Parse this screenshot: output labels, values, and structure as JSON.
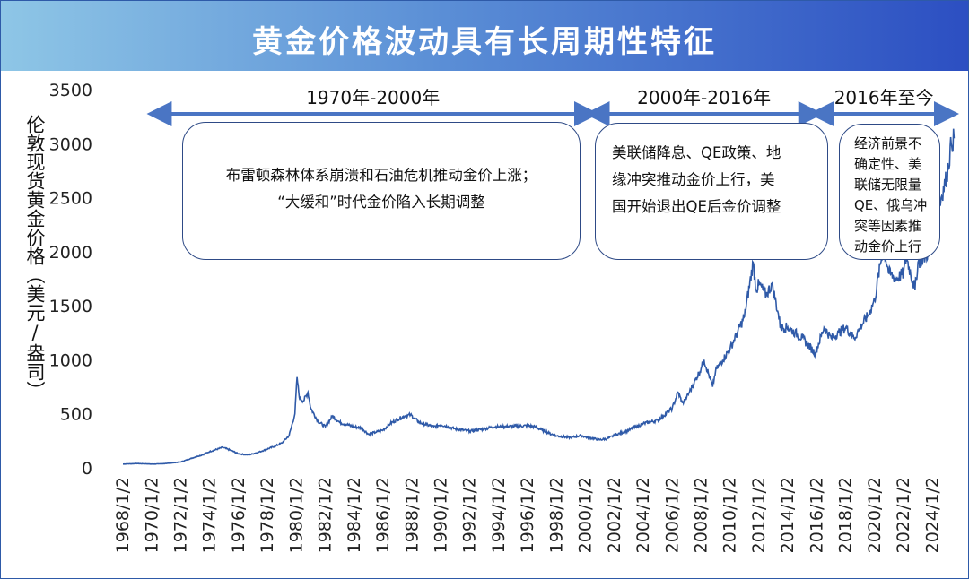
{
  "header": {
    "title": "黄金价格波动具有长周期性特征"
  },
  "colors": {
    "line": "#2f5aa8",
    "arrow": "#4a75c4",
    "banner_start": "#8ec6e6",
    "banner_end": "#2c4fc2"
  },
  "chart_data": {
    "type": "line",
    "title": "黄金价格波动具有长周期性特征",
    "ylabel": "伦敦现货黄金价格（美元/盎司）",
    "xlabel": "",
    "ylim": [
      0,
      3500
    ],
    "yticks": [
      0,
      500,
      1000,
      1500,
      2000,
      2500,
      3000,
      3500
    ],
    "xlim": [
      1968.0,
      2025.6
    ],
    "xticks": [
      "1968/1/2",
      "1970/1/2",
      "1972/1/2",
      "1974/1/2",
      "1976/1/2",
      "1978/1/2",
      "1980/1/2",
      "1982/1/2",
      "1984/1/2",
      "1986/1/2",
      "1988/1/2",
      "1990/1/2",
      "1992/1/2",
      "1994/1/2",
      "1996/1/2",
      "1998/1/2",
      "2000/1/2",
      "2002/1/2",
      "2004/1/2",
      "2006/1/2",
      "2008/1/2",
      "2010/1/2",
      "2012/1/2",
      "2014/1/2",
      "2016/1/2",
      "2018/1/2",
      "2020/1/2",
      "2022/1/2",
      "2024/1/2"
    ],
    "series": [
      {
        "name": "",
        "x": [
          1968.0,
          1969.0,
          1970.0,
          1971.0,
          1972.0,
          1973.0,
          1973.5,
          1974.0,
          1974.9,
          1975.5,
          1976.0,
          1976.7,
          1977.5,
          1978.5,
          1979.0,
          1979.5,
          1979.9,
          1980.05,
          1980.2,
          1980.5,
          1980.8,
          1981.0,
          1981.5,
          1982.0,
          1982.5,
          1983.0,
          1983.5,
          1984.0,
          1984.5,
          1985.0,
          1985.5,
          1986.0,
          1986.5,
          1987.0,
          1987.5,
          1987.9,
          1988.5,
          1989.0,
          1989.5,
          1990.0,
          1990.5,
          1991.0,
          1992.0,
          1993.0,
          1993.6,
          1994.0,
          1995.0,
          1996.0,
          1996.5,
          1997.0,
          1997.5,
          1998.0,
          1999.0,
          1999.7,
          2000.0,
          2001.0,
          2001.5,
          2002.0,
          2003.0,
          2004.0,
          2005.0,
          2006.0,
          2006.4,
          2006.7,
          2007.0,
          2008.0,
          2008.2,
          2008.8,
          2009.0,
          2009.5,
          2010.0,
          2010.5,
          2011.0,
          2011.6,
          2011.8,
          2012.0,
          2012.5,
          2012.9,
          2013.3,
          2013.5,
          2014.0,
          2014.5,
          2015.0,
          2015.9,
          2016.5,
          2017.0,
          2017.5,
          2018.0,
          2018.6,
          2019.0,
          2019.5,
          2020.0,
          2020.6,
          2021.0,
          2021.5,
          2022.0,
          2022.2,
          2022.8,
          2023.0,
          2023.5,
          2024.0,
          2024.3,
          2024.6,
          2025.0,
          2025.3,
          2025.5
        ],
        "values": [
          35,
          40,
          35,
          40,
          55,
          100,
          120,
          150,
          190,
          160,
          130,
          120,
          150,
          200,
          230,
          300,
          500,
          840,
          650,
          620,
          700,
          550,
          430,
          380,
          480,
          420,
          400,
          380,
          370,
          310,
          330,
          350,
          410,
          450,
          480,
          490,
          420,
          400,
          380,
          400,
          380,
          360,
          340,
          360,
          380,
          380,
          385,
          390,
          380,
          350,
          320,
          295,
          280,
          300,
          285,
          260,
          270,
          300,
          350,
          410,
          440,
          550,
          700,
          600,
          650,
          920,
          1000,
          750,
          900,
          1000,
          1100,
          1250,
          1400,
          1900,
          1650,
          1700,
          1600,
          1700,
          1450,
          1300,
          1300,
          1250,
          1200,
          1060,
          1300,
          1200,
          1250,
          1300,
          1200,
          1300,
          1400,
          1550,
          2050,
          1800,
          1750,
          1800,
          1950,
          1650,
          1900,
          1950,
          2050,
          2300,
          2500,
          2700,
          3000,
          3050
        ]
      }
    ]
  },
  "periods": [
    {
      "label": "1970年-2000年",
      "from": 1970.2,
      "to": 2000.4
    },
    {
      "label": "2000年-2016年",
      "from": 2000.5,
      "to": 2015.9
    },
    {
      "label": "2016年至今",
      "from": 2016.0,
      "to": 2025.8
    }
  ],
  "notes": [
    {
      "lines": [
        "布雷顿森林体系崩溃和石油危机推动金价上涨；",
        "“大缓和”时代金价陷入长期调整"
      ]
    },
    {
      "lines": [
        "美联储降息、QE政策、地",
        "缘冲突推动金价上行，美",
        "国开始退出QE后金价调整"
      ]
    },
    {
      "lines": [
        "经济前景不",
        "确定性、美",
        "联储无限量",
        "QE、俄乌冲",
        "突等因素推",
        "动金价上行"
      ]
    }
  ]
}
